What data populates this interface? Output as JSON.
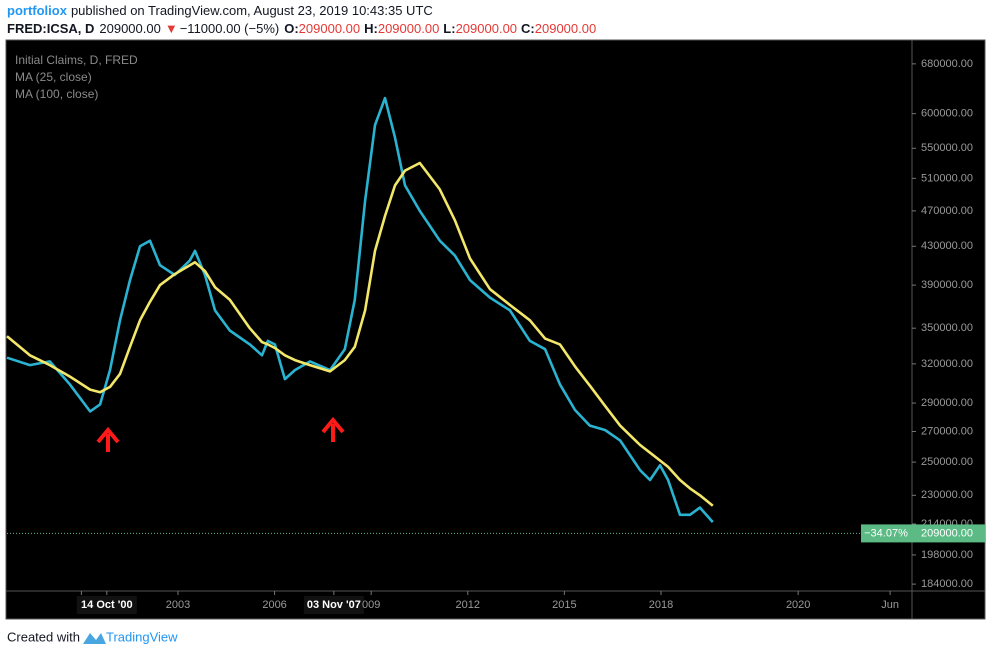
{
  "header": {
    "author": "portfoliox",
    "published": "published on TradingView.com, August 23, 2019 10:43:35 UTC"
  },
  "quote": {
    "symbol": "FRED:ICSA, D",
    "last": "209000.00",
    "change": "−11000.00 (−5%)",
    "open_label": "O:",
    "open": "209000.00",
    "high_label": "H:",
    "high": "209000.00",
    "low_label": "L:",
    "low": "209000.00",
    "close_label": "C:",
    "close": "209000.00"
  },
  "footer": {
    "created": "Created with",
    "brand": "TradingView"
  },
  "chart_data": {
    "type": "line",
    "title": "Initial Claims, D, FRED",
    "log_scale": true,
    "grid": false,
    "x": [
      1997.69,
      1998.4,
      1999.02,
      1999.64,
      2000.27,
      2000.58,
      2000.89,
      2001.2,
      2001.51,
      2001.82,
      2002.13,
      2002.44,
      2002.9,
      2003.37,
      2003.53,
      2003.84,
      2004.15,
      2004.61,
      2005.23,
      2005.61,
      2005.79,
      2006.01,
      2006.32,
      2006.63,
      2007.1,
      2007.72,
      2008.18,
      2008.49,
      2008.81,
      2009.12,
      2009.43,
      2009.74,
      2010.05,
      2010.51,
      2011.13,
      2011.6,
      2012.07,
      2012.69,
      2013.31,
      2013.93,
      2014.4,
      2014.86,
      2015.33,
      2015.79,
      2016.26,
      2016.73,
      2017.35,
      2017.66,
      2017.97,
      2018.22,
      2018.59,
      2018.9,
      2019.21,
      2019.61
    ],
    "series": [
      {
        "name": "MA (25, close)",
        "color": "#2ab3d1",
        "values": [
          325000,
          319000,
          322000,
          304000,
          284000,
          289000,
          315000,
          357000,
          395000,
          430000,
          436000,
          410000,
          400000,
          415000,
          425000,
          400000,
          366000,
          348000,
          336000,
          327000,
          339000,
          336000,
          308000,
          315000,
          322000,
          315000,
          332000,
          376000,
          482000,
          583000,
          624000,
          565000,
          501000,
          470000,
          436000,
          420000,
          395000,
          378000,
          366000,
          339000,
          332000,
          304000,
          285000,
          274000,
          271000,
          264000,
          245000,
          239000,
          248000,
          239000,
          219000,
          219000,
          223000,
          215000
        ]
      },
      {
        "name": "MA (100, close)",
        "color": "#f3e76a",
        "values": [
          343000,
          327000,
          319000,
          310000,
          300000,
          298000,
          302000,
          312000,
          334000,
          357000,
          374000,
          390000,
          401000,
          410000,
          413000,
          404000,
          388000,
          376000,
          350000,
          338000,
          336000,
          333000,
          327000,
          323000,
          319000,
          314000,
          323000,
          334000,
          366000,
          425000,
          464000,
          501000,
          520000,
          530000,
          496000,
          459000,
          417000,
          386000,
          371000,
          357000,
          341000,
          336000,
          318000,
          303000,
          288000,
          274000,
          261000,
          256000,
          251000,
          247000,
          239000,
          234000,
          230000,
          224000
        ]
      }
    ],
    "xlim": [
      1997.69,
      2020.52
    ],
    "xticks": [
      {
        "value": 2000,
        "label": "2"
      },
      {
        "value": 2000.79,
        "label": "14 Oct '00"
      },
      2003,
      2006,
      {
        "value": 2007.84,
        "label": "03 Nov '07"
      },
      {
        "value": 2009,
        "label": "009"
      },
      2012,
      2015,
      2018,
      2020,
      {
        "value": 2020.42,
        "label": "Jun"
      }
    ],
    "highlighted_xticks": [
      1,
      4
    ],
    "ylim": [
      181300,
      722000
    ],
    "yticks": [
      {
        "value": 680000,
        "label": "680000.00"
      },
      {
        "value": 600000,
        "label": "600000.00"
      },
      {
        "value": 550000,
        "label": "550000.00"
      },
      {
        "value": 510000,
        "label": "510000.00"
      },
      {
        "value": 470000,
        "label": "470000.00"
      },
      {
        "value": 430000,
        "label": "430000.00"
      },
      {
        "value": 390000,
        "label": "390000.00"
      },
      {
        "value": 350000,
        "label": "350000.00"
      },
      {
        "value": 320000,
        "label": "320000.00"
      },
      {
        "value": 290000,
        "label": "290000.00"
      },
      {
        "value": 270000,
        "label": "270000.00"
      },
      {
        "value": 250000,
        "label": "250000.00"
      },
      {
        "value": 230000,
        "label": "230000.00"
      },
      {
        "value": 214000,
        "label": "214000.00"
      },
      {
        "value": 198000,
        "label": "198000.00"
      },
      {
        "value": 184000,
        "label": "184000.00"
      }
    ],
    "last_price": {
      "value": 209000,
      "label": "209000.00"
    },
    "change_label": "−34.07%",
    "last_price_color": "#5cba85"
  }
}
